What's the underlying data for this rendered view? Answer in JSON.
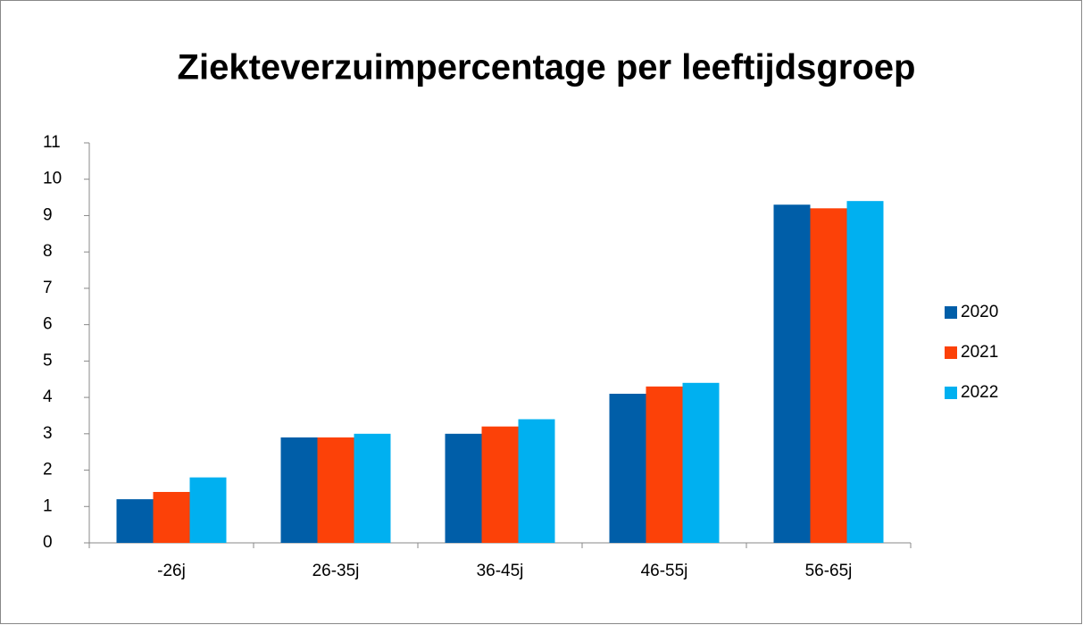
{
  "chart_data": {
    "type": "bar",
    "title": "Ziekteverzuimpercentage per leeftijdsgroep",
    "categories": [
      "-26j",
      "26-35j",
      "36-45j",
      "46-55j",
      "56-65j"
    ],
    "series": [
      {
        "name": "2020",
        "color": "#005ea8",
        "values": [
          1.2,
          2.9,
          3.0,
          4.1,
          9.3
        ]
      },
      {
        "name": "2021",
        "color": "#fc4108",
        "values": [
          1.4,
          2.9,
          3.2,
          4.3,
          9.2
        ]
      },
      {
        "name": "2022",
        "color": "#00b0f0",
        "values": [
          1.8,
          3.0,
          3.4,
          4.4,
          9.4
        ]
      }
    ],
    "ylim": [
      0,
      11
    ],
    "yticks": [
      0,
      1,
      2,
      3,
      4,
      5,
      6,
      7,
      8,
      9,
      10,
      11
    ],
    "grid": false,
    "legend": "right"
  }
}
